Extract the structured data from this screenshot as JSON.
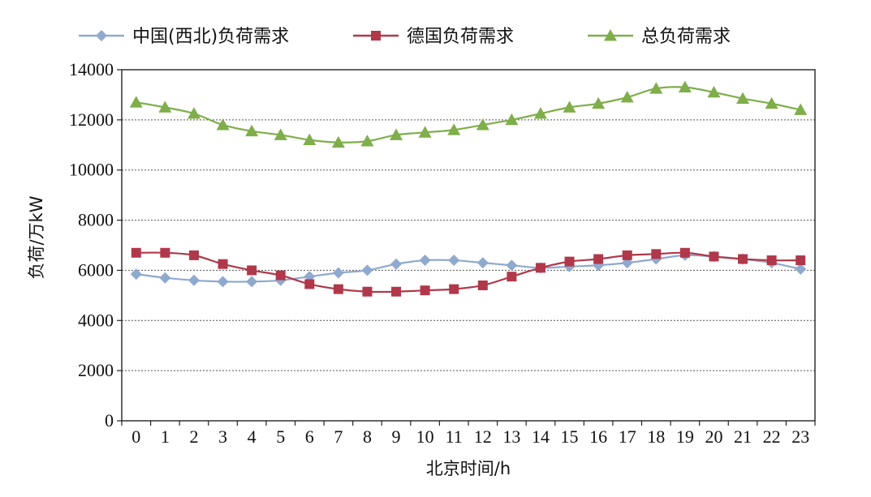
{
  "chart_data": {
    "type": "line",
    "title": "",
    "xlabel": "北京时间/h",
    "ylabel": "负荷/万kW",
    "x": [
      0,
      1,
      2,
      3,
      4,
      5,
      6,
      7,
      8,
      9,
      10,
      11,
      12,
      13,
      14,
      15,
      16,
      17,
      18,
      19,
      20,
      21,
      22,
      23
    ],
    "ylim": [
      0,
      14000
    ],
    "yticks": [
      0,
      2000,
      4000,
      6000,
      8000,
      10000,
      12000,
      14000
    ],
    "grid": "horizontal dotted",
    "legend_position": "top",
    "series": [
      {
        "name": "中国(西北)负荷需求",
        "color": "#8fa9cf",
        "marker": "diamond",
        "values": [
          5850,
          5700,
          5600,
          5550,
          5550,
          5600,
          5750,
          5900,
          6000,
          6250,
          6400,
          6400,
          6300,
          6200,
          6100,
          6150,
          6200,
          6300,
          6450,
          6600,
          6550,
          6450,
          6300,
          6050
        ]
      },
      {
        "name": "德国负荷需求",
        "color": "#b0384a",
        "marker": "square",
        "values": [
          6700,
          6700,
          6600,
          6250,
          6000,
          5800,
          5450,
          5250,
          5150,
          5150,
          5200,
          5250,
          5400,
          5750,
          6100,
          6350,
          6450,
          6600,
          6650,
          6700,
          6550,
          6450,
          6400,
          6400
        ]
      },
      {
        "name": "总负荷需求",
        "color": "#7fae4a",
        "marker": "triangle",
        "values": [
          12700,
          12500,
          12250,
          11800,
          11550,
          11400,
          11200,
          11100,
          11150,
          11400,
          11500,
          11600,
          11800,
          12000,
          12250,
          12500,
          12650,
          12900,
          13250,
          13300,
          13100,
          12850,
          12650,
          12400
        ]
      }
    ]
  }
}
